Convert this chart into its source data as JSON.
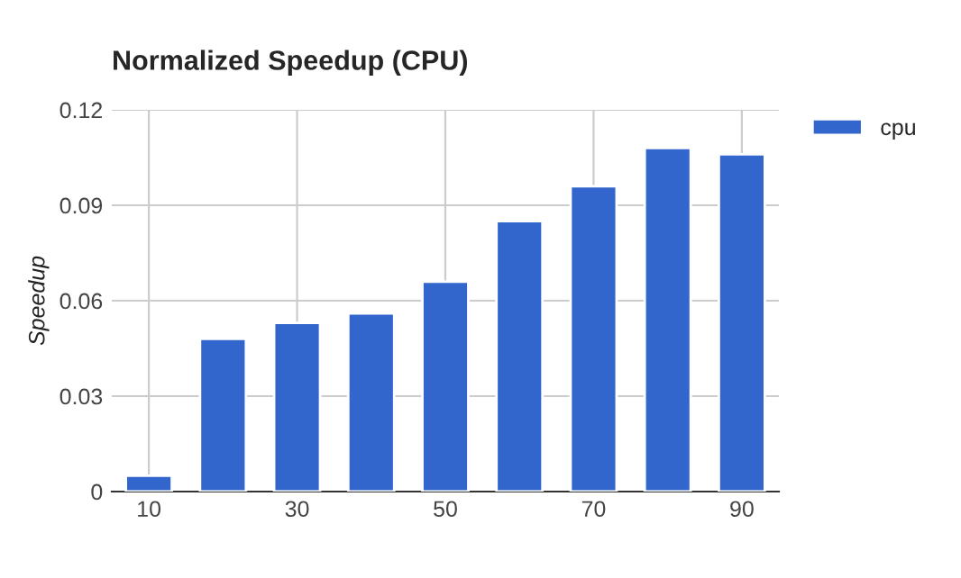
{
  "chart_data": {
    "type": "bar",
    "title": "Normalized Speedup (CPU)",
    "ylabel": "Speedup",
    "categories": [
      "10",
      null,
      "30",
      null,
      "50",
      null,
      "70",
      null,
      "90"
    ],
    "series": [
      {
        "name": "cpu",
        "color": "#3366cc",
        "values": [
          0.005,
          0.048,
          0.053,
          0.056,
          0.066,
          0.085,
          0.096,
          0.108,
          0.106
        ]
      }
    ],
    "ylim": [
      0,
      0.12
    ],
    "yticks": [
      0,
      0.03,
      0.06,
      0.09,
      0.12
    ],
    "grid": true,
    "legend": "top right"
  }
}
